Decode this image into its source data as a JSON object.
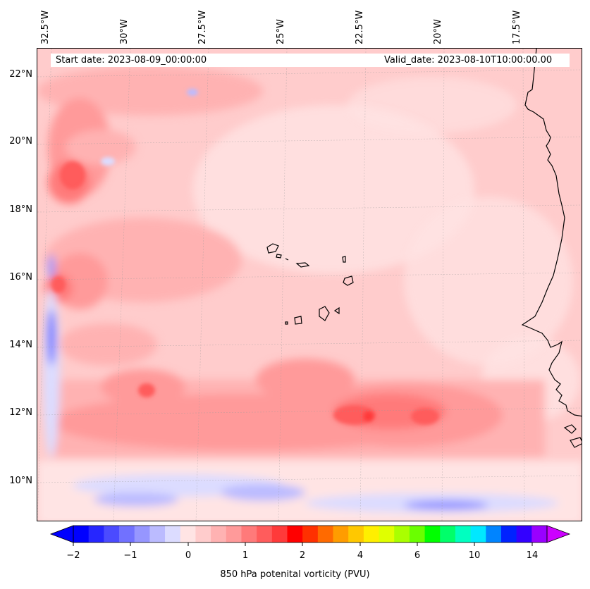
{
  "map": {
    "start_date": "Start date: 2023-08-09_00:00:00",
    "valid_date": "Valid_date: 2023-08-10T10:00:00.00",
    "longitude_labels": [
      "32.5°W",
      "30°W",
      "27.5°W",
      "25°W",
      "22.5°W",
      "20°W",
      "17.5°W"
    ],
    "latitude_labels": [
      "22°N",
      "20°N",
      "18°N",
      "16°N",
      "14°N",
      "12°N",
      "10°N"
    ]
  },
  "colorbar": {
    "label": "850 hPa potenital vorticity (PVU)",
    "tick_labels": [
      "−2",
      "−1",
      "0",
      "1",
      "2",
      "4",
      "6",
      "10",
      "14"
    ],
    "colors": [
      "#0000ff",
      "#2626ff",
      "#4b4bff",
      "#7171ff",
      "#9696ff",
      "#bbbbff",
      "#dcdcff",
      "#ffe4e4",
      "#ffcccc",
      "#ffb2b2",
      "#ff9a9a",
      "#ff7a7a",
      "#ff5c5c",
      "#ff3a3a",
      "#ff0000",
      "#ff3000",
      "#ff6a00",
      "#ff9c00",
      "#ffc800",
      "#ffef00",
      "#e0ff00",
      "#aaff00",
      "#6aff00",
      "#00ff00",
      "#00ff6a",
      "#00ffc0",
      "#00e8ff",
      "#0084ff",
      "#0022ff",
      "#3300ff",
      "#9900ff"
    ],
    "extend_min_color": "#0000ff",
    "extend_max_color": "#cc00ff"
  }
}
